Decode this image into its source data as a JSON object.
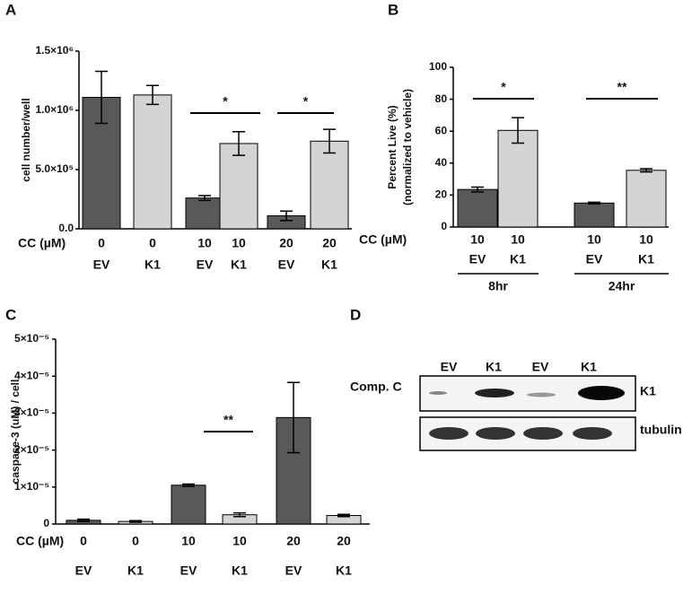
{
  "chart_data": [
    {
      "type": "bar",
      "panel": "A",
      "y_label": "cell number/well",
      "x_label": "CC (µM)",
      "categories": [
        "0",
        "0",
        "10",
        "10",
        "20",
        "20"
      ],
      "constructs": [
        "EV",
        "K1",
        "EV",
        "K1",
        "EV",
        "K1"
      ],
      "values": [
        1110000,
        1130000,
        260000,
        720000,
        110000,
        740000
      ],
      "errors": [
        220000,
        80000,
        20000,
        100000,
        40000,
        100000
      ],
      "colors": [
        "#595959",
        "#d4d4d4",
        "#595959",
        "#d4d4d4",
        "#595959",
        "#d4d4d4"
      ],
      "ylim": [
        0,
        1500000
      ],
      "yticks": [
        {
          "value": 0,
          "label": "0.0"
        },
        {
          "value": 500000,
          "label": "5.0×10⁵"
        },
        {
          "value": 1000000,
          "label": "1.0×10⁶"
        },
        {
          "value": 1500000,
          "label": "1.5×10⁶"
        }
      ],
      "annotations": [
        "*",
        "*"
      ]
    },
    {
      "type": "bar",
      "panel": "B",
      "y_label": [
        "Percent Live (%)",
        "(normalized to vehicle)"
      ],
      "x_label": "CC (µM)",
      "categories": [
        "10",
        "10",
        "10",
        "10"
      ],
      "constructs": [
        "EV",
        "K1",
        "EV",
        "K1"
      ],
      "time_groups": [
        "8hr",
        "24hr"
      ],
      "values": [
        23.5,
        60.5,
        15,
        35.5
      ],
      "errors": [
        1.5,
        8,
        0.5,
        1
      ],
      "colors": [
        "#595959",
        "#d4d4d4",
        "#595959",
        "#d4d4d4"
      ],
      "ylim": [
        0,
        100
      ],
      "yticks": [
        0,
        20,
        40,
        60,
        80,
        100
      ],
      "annotations": [
        "*",
        "**"
      ]
    },
    {
      "type": "bar",
      "panel": "C",
      "y_label": "caspase-3 (uM) / cell",
      "x_label": "CC (µM)",
      "categories": [
        "0",
        "0",
        "10",
        "10",
        "20",
        "20"
      ],
      "constructs": [
        "EV",
        "K1",
        "EV",
        "K1",
        "EV",
        "K1"
      ],
      "values": [
        1e-06,
        7e-07,
        1.05e-05,
        2.5e-06,
        2.88e-05,
        2.3e-06
      ],
      "errors": [
        3e-07,
        2e-07,
        3e-07,
        5e-07,
        9.5e-06,
        3e-07
      ],
      "colors": [
        "#595959",
        "#d4d4d4",
        "#595959",
        "#d4d4d4",
        "#595959",
        "#d4d4d4"
      ],
      "ylim": [
        0,
        5e-05
      ],
      "yticks": [
        0,
        {
          "value": 1e-05,
          "label": "1×10⁻⁵"
        },
        {
          "value": 2e-05,
          "label": "2×10⁻⁵"
        },
        {
          "value": 3e-05,
          "label": "3×10⁻⁵"
        },
        {
          "value": 4e-05,
          "label": "4×10⁻⁵"
        },
        {
          "value": 5e-05,
          "label": "5×10⁻⁵"
        }
      ],
      "annotations": [
        "**"
      ]
    }
  ],
  "blot": {
    "panel": "D",
    "lanes": [
      "EV",
      "K1",
      "EV",
      "K1"
    ],
    "treatment_label": "Comp. C",
    "treatment": [
      "-",
      "-",
      "+",
      "+"
    ],
    "bands": [
      "K1",
      "tubulin"
    ]
  }
}
